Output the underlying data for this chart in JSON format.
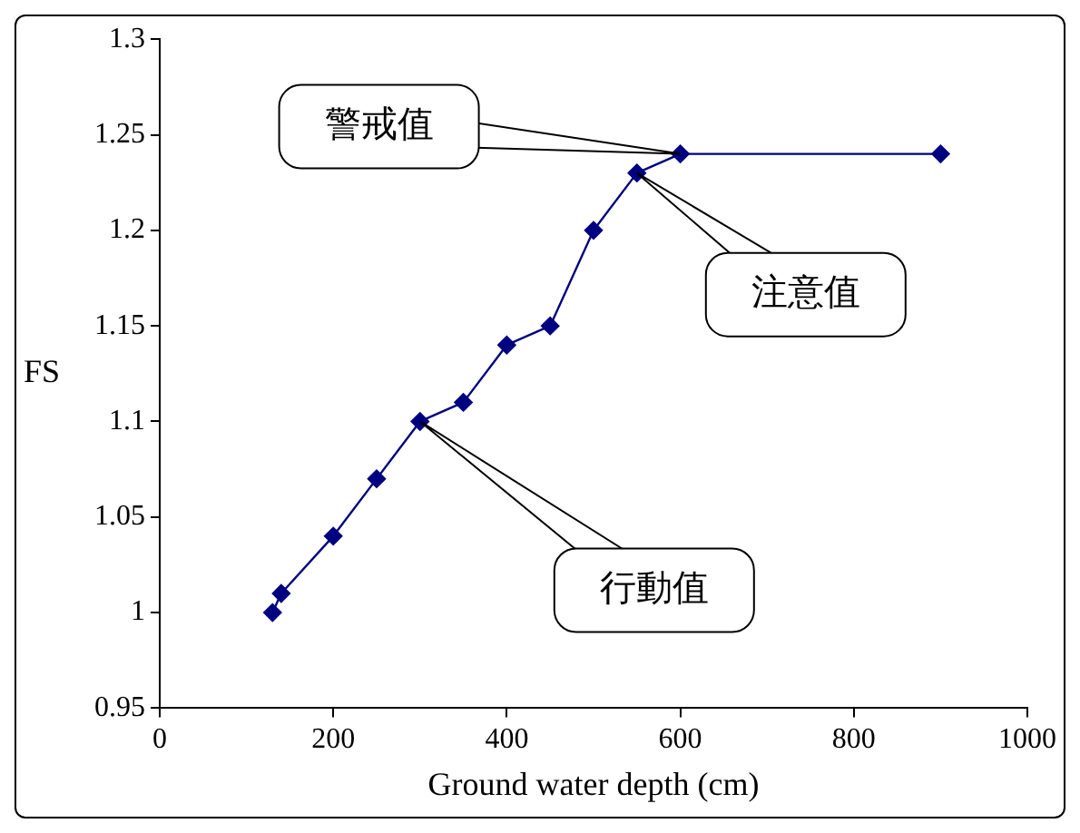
{
  "chart_data": {
    "type": "line",
    "xlabel": "Ground water depth (cm)",
    "ylabel": "FS",
    "x": [
      130,
      140,
      200,
      250,
      300,
      350,
      400,
      450,
      500,
      550,
      600,
      900
    ],
    "series": [
      {
        "color": "#000080",
        "values": [
          1.0,
          1.01,
          1.04,
          1.07,
          1.1,
          1.11,
          1.14,
          1.15,
          1.2,
          1.23,
          1.24,
          1.24
        ]
      }
    ],
    "xlim": [
      0,
      1000
    ],
    "xticks": [
      0,
      200,
      400,
      600,
      800,
      1000
    ],
    "ylim": [
      0.95,
      1.3
    ],
    "yticks": [
      0.95,
      1,
      1.05,
      1.1,
      1.15,
      1.2,
      1.25,
      1.3
    ],
    "marker": "diamond",
    "line_style": "solid",
    "legend": false,
    "annotations": [
      "警戒值",
      "注意值",
      "行動值"
    ]
  }
}
